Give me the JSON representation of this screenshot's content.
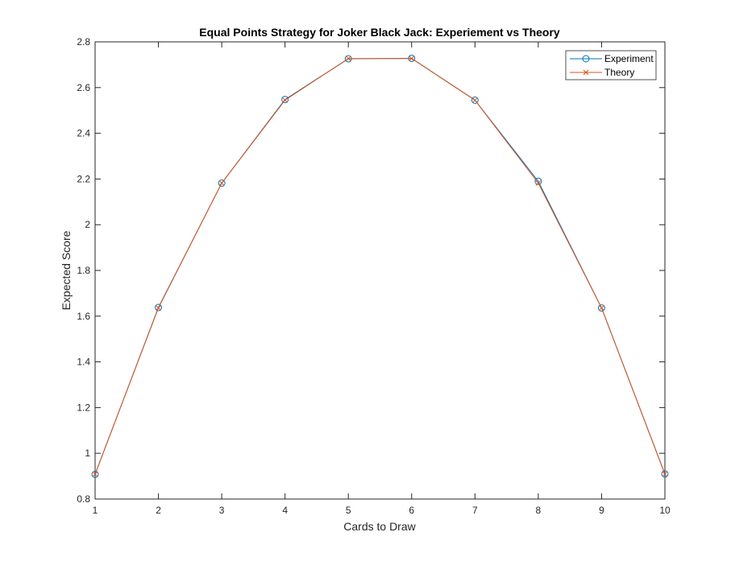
{
  "chart_data": {
    "type": "line",
    "title": "Equal Points Strategy for Joker Black Jack: Experiement vs Theory",
    "xlabel": "Cards to Draw",
    "ylabel": "Expected Score",
    "xlim": [
      1,
      10
    ],
    "ylim": [
      0.8,
      2.8
    ],
    "xticks": [
      "1",
      "2",
      "3",
      "4",
      "5",
      "6",
      "7",
      "8",
      "9",
      "10"
    ],
    "yticks": [
      "0.8",
      "1",
      "1.2",
      "1.4",
      "1.6",
      "1.8",
      "2",
      "2.2",
      "2.4",
      "2.6",
      "2.8"
    ],
    "grid": false,
    "legend_position": "top-right",
    "x": [
      1,
      2,
      3,
      4,
      5,
      6,
      7,
      8,
      9,
      10
    ],
    "series": [
      {
        "name": "Experiment",
        "marker": "circle",
        "color": "#0072BD",
        "values": [
          0.908,
          1.638,
          2.182,
          2.548,
          2.726,
          2.728,
          2.545,
          2.19,
          1.636,
          0.91
        ]
      },
      {
        "name": "Theory",
        "marker": "x",
        "color": "#D95319",
        "values": [
          0.909,
          1.636,
          2.182,
          2.545,
          2.727,
          2.727,
          2.545,
          2.182,
          1.636,
          0.909
        ]
      }
    ]
  }
}
